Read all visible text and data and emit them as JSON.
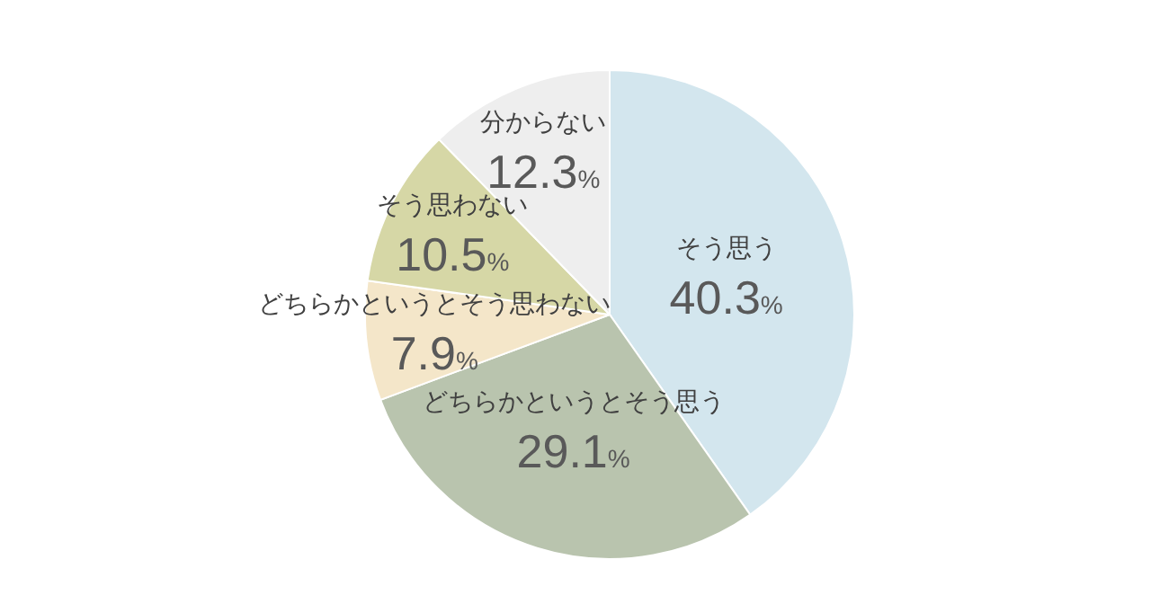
{
  "chart_data": {
    "type": "pie",
    "categories": [
      "そう思う",
      "どちらかというとそう思う",
      "どちらかというとそう思わない",
      "そう思わない",
      "分からない"
    ],
    "values": [
      40.3,
      29.1,
      7.9,
      10.5,
      12.3
    ],
    "value_labels": [
      "40.3%",
      "29.1%",
      "7.9%",
      "10.5%",
      "12.3%"
    ],
    "colors": [
      "#d3e6ee",
      "#b9c4ae",
      "#f4e6c9",
      "#d6d7a6",
      "#eeeeee"
    ]
  }
}
